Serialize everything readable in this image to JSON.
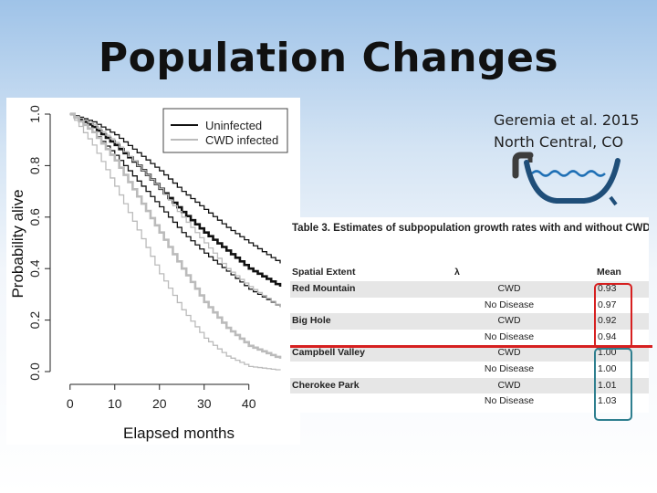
{
  "slide": {
    "title": "Population Changes",
    "citation_line1": "Geremia et al. 2015",
    "citation_line2": "North Central, CO"
  },
  "chart_data": {
    "type": "line",
    "xlabel": "Elapsed months",
    "ylabel": "Probability alive",
    "xlim": [
      -2,
      47
    ],
    "ylim": [
      0,
      1
    ],
    "x_ticks": [
      0,
      10,
      20,
      30,
      40
    ],
    "y_ticks": [
      0.0,
      0.2,
      0.4,
      0.6,
      0.8,
      1.0
    ],
    "x_tick_labels": [
      "0",
      "10",
      "20",
      "30",
      "40"
    ],
    "y_tick_labels": [
      "0.0",
      "0.2",
      "0.4",
      "0.6",
      "0.8",
      "1.0"
    ],
    "legend_position": "top-right",
    "step": true,
    "legend": [
      {
        "label": "Uninfected",
        "color": "#111111"
      },
      {
        "label": "CWD infected",
        "color": "#bbbbbb"
      }
    ],
    "series": [
      {
        "group": "uninfected",
        "style": "upper",
        "color": "#111111",
        "x": [
          0,
          5,
          10,
          15,
          20,
          25,
          30,
          35,
          40,
          47
        ],
        "y": [
          1.0,
          0.97,
          0.92,
          0.85,
          0.78,
          0.7,
          0.63,
          0.56,
          0.5,
          0.42
        ]
      },
      {
        "group": "uninfected",
        "style": "mean",
        "color": "#111111",
        "x": [
          0,
          5,
          10,
          15,
          20,
          25,
          30,
          35,
          40,
          47
        ],
        "y": [
          1.0,
          0.95,
          0.88,
          0.8,
          0.71,
          0.62,
          0.54,
          0.47,
          0.4,
          0.33
        ]
      },
      {
        "group": "uninfected",
        "style": "lower",
        "color": "#111111",
        "x": [
          0,
          5,
          10,
          15,
          20,
          25,
          30,
          35,
          40,
          47
        ],
        "y": [
          1.0,
          0.93,
          0.84,
          0.74,
          0.64,
          0.54,
          0.46,
          0.39,
          0.32,
          0.25
        ]
      },
      {
        "group": "cwd",
        "style": "upper",
        "color": "#bbbbbb",
        "x": [
          0,
          5,
          10,
          15,
          20,
          25,
          30,
          35,
          40,
          47
        ],
        "y": [
          1.0,
          0.96,
          0.89,
          0.8,
          0.71,
          0.6,
          0.5,
          0.4,
          0.33,
          0.25
        ]
      },
      {
        "group": "cwd",
        "style": "mean",
        "color": "#bbbbbb",
        "x": [
          0,
          5,
          10,
          15,
          20,
          25,
          30,
          35,
          40,
          47
        ],
        "y": [
          1.0,
          0.93,
          0.82,
          0.68,
          0.54,
          0.4,
          0.27,
          0.17,
          0.1,
          0.05
        ]
      },
      {
        "group": "cwd",
        "style": "lower",
        "color": "#bbbbbb",
        "x": [
          0,
          5,
          10,
          15,
          20,
          25,
          30,
          35,
          40,
          47
        ],
        "y": [
          1.0,
          0.88,
          0.72,
          0.55,
          0.38,
          0.24,
          0.13,
          0.06,
          0.02,
          0.005
        ]
      }
    ]
  },
  "table": {
    "caption": "Table 3.  Estimates of subpopulation growth rates with and without CWD.",
    "headers": {
      "extent": "Spatial Extent",
      "lambda": "λ",
      "mean": "Mean"
    },
    "rows": [
      {
        "extent": "Red Mountain",
        "lambda": "CWD",
        "mean": "0.93"
      },
      {
        "extent": "",
        "lambda": "No Disease",
        "mean": "0.97"
      },
      {
        "extent": "Big Hole",
        "lambda": "CWD",
        "mean": "0.92"
      },
      {
        "extent": "",
        "lambda": "No Disease",
        "mean": "0.94"
      },
      {
        "extent": "Campbell Valley",
        "lambda": "CWD",
        "mean": "1.00"
      },
      {
        "extent": "",
        "lambda": "No Disease",
        "mean": "1.00"
      },
      {
        "extent": "Cherokee Park",
        "lambda": "CWD",
        "mean": "1.01"
      },
      {
        "extent": "",
        "lambda": "No Disease",
        "mean": "1.03"
      }
    ]
  },
  "highlights": {
    "red": "#d62020",
    "blue": "#2f7f8f",
    "bathtub": "#1f4e79"
  }
}
